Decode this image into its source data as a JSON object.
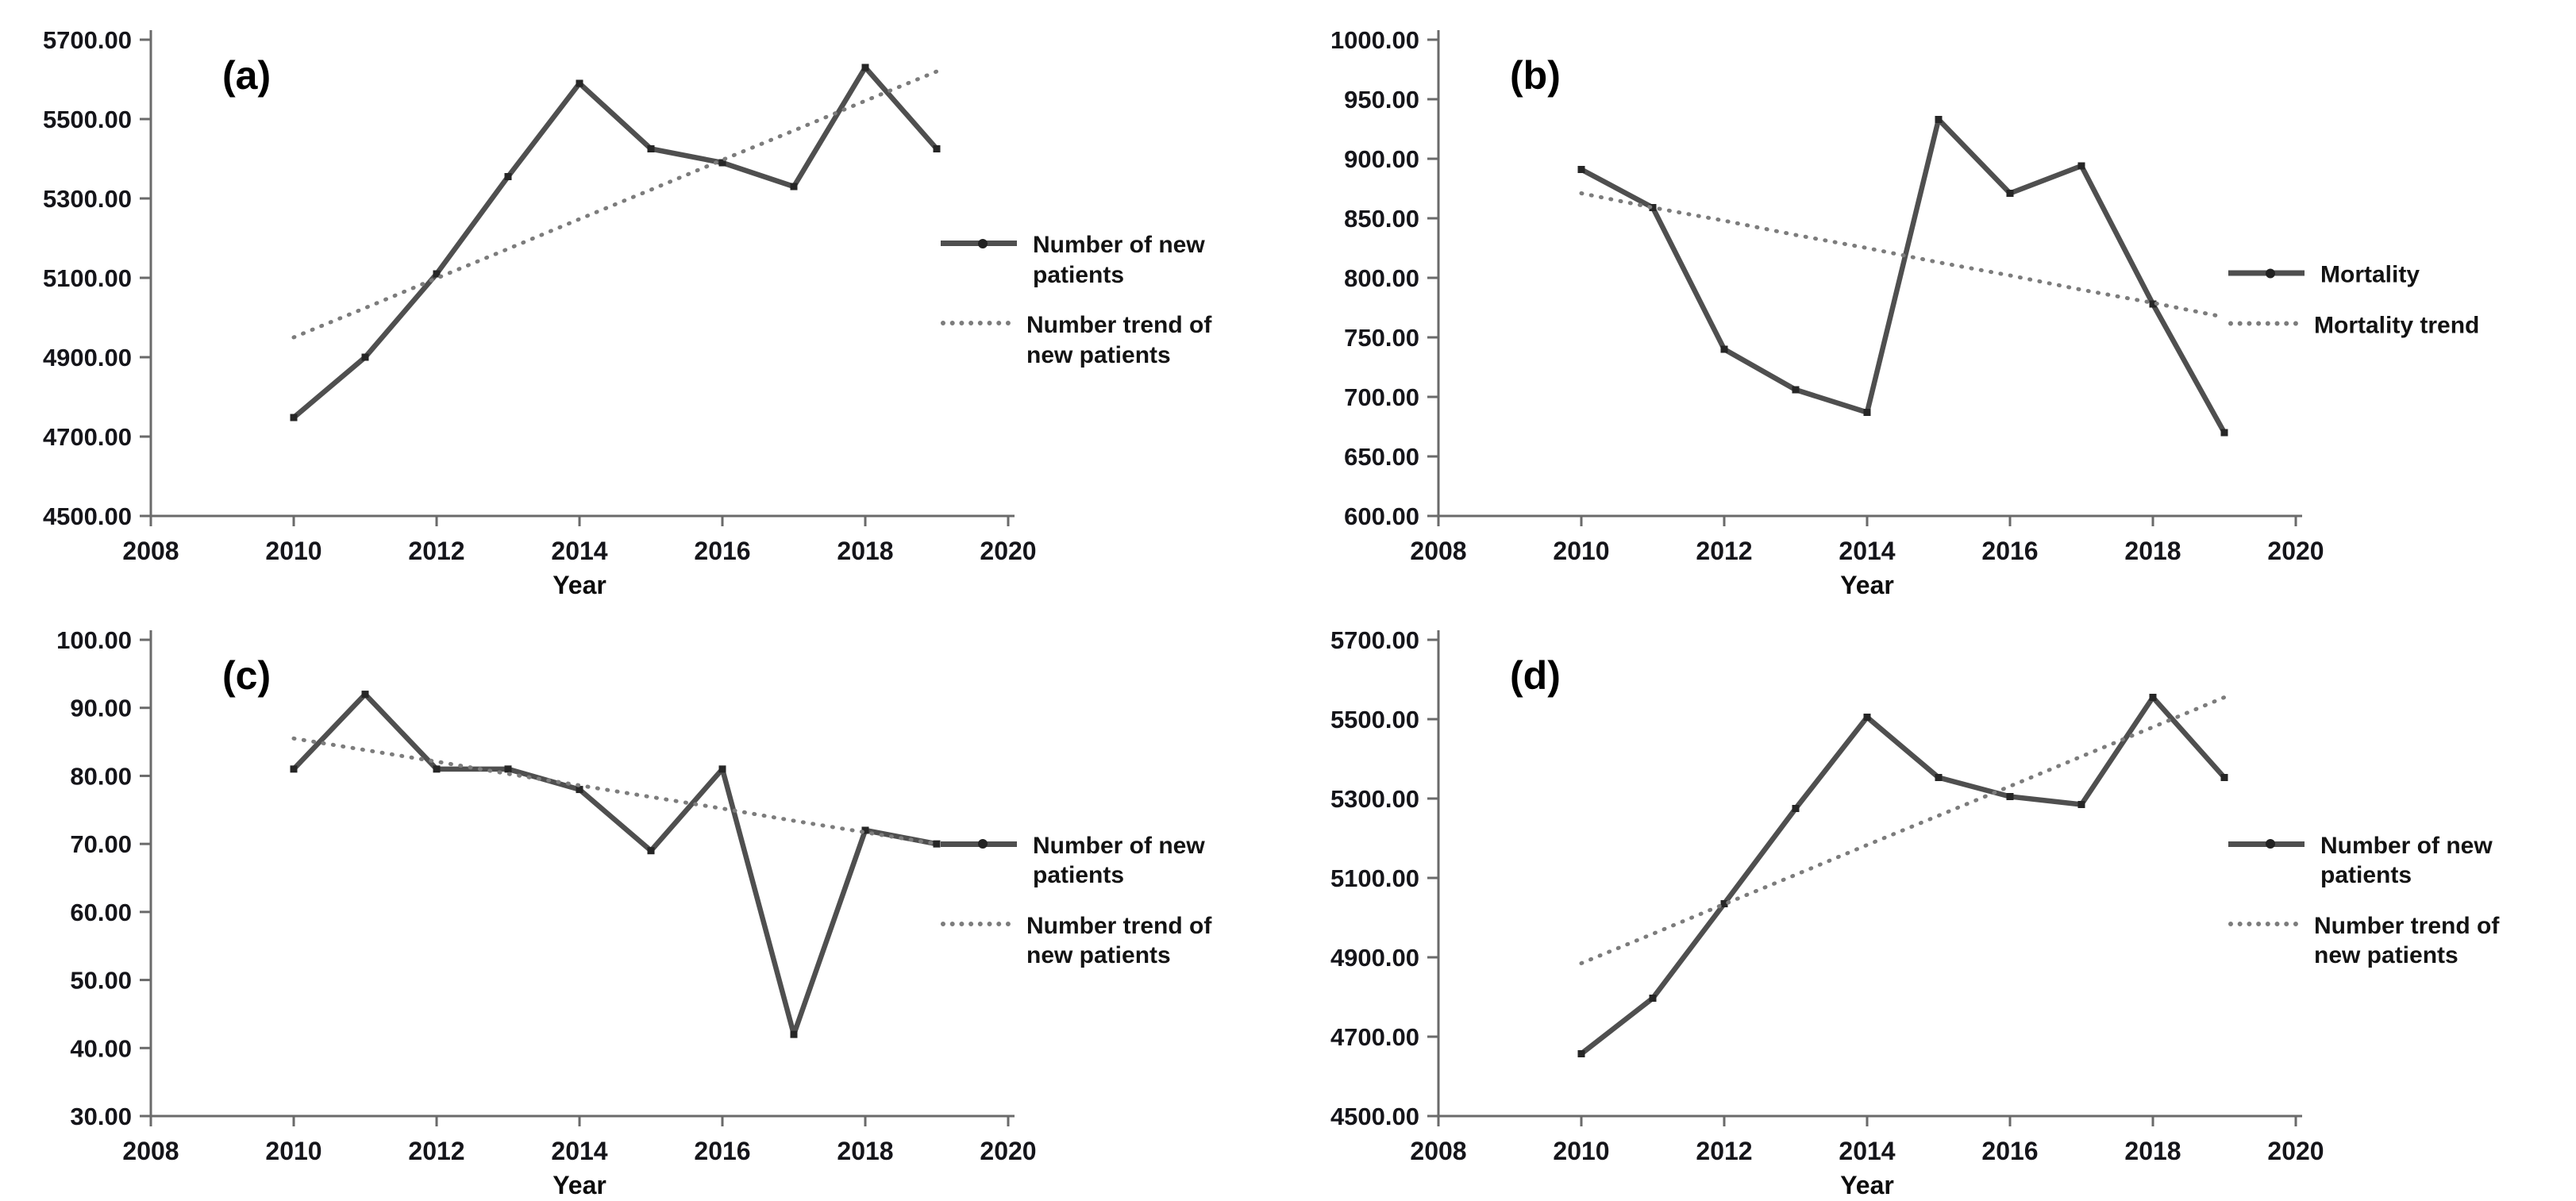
{
  "figure": {
    "background": "#ffffff",
    "xlabel": "Year",
    "panel_labels": [
      "(a)",
      "(b)",
      "(c)",
      "(d)"
    ]
  },
  "colors": {
    "series_line": "#4f4f4f",
    "trend_line": "#7c7c7c",
    "marker": "#262626",
    "axis": "#6a6a6a",
    "tick_text": "#15151a",
    "label_text": "#0d0d0d"
  },
  "chart_data": [
    {
      "panel_label": "(a)",
      "type": "line",
      "xlabel": "Year",
      "xlim": [
        2008,
        2020
      ],
      "ylim": [
        4500,
        5700
      ],
      "xticks": [
        "2008",
        "2010",
        "2012",
        "2014",
        "2016",
        "2018",
        "2020"
      ],
      "yticks": [
        "4500.00",
        "4700.00",
        "4900.00",
        "5100.00",
        "5300.00",
        "5500.00",
        "5700.00"
      ],
      "x": [
        2010,
        2011,
        2012,
        2013,
        2014,
        2015,
        2016,
        2017,
        2018,
        2019
      ],
      "grid": false,
      "legend_position": "right",
      "series": [
        {
          "name": "Number of new patients",
          "style": "solid",
          "values": [
            4748,
            4900,
            5110,
            5355,
            5590,
            5425,
            5390,
            5330,
            5630,
            5425
          ]
        },
        {
          "name": "Number trend of new patients",
          "style": "dotted",
          "values": [
            4950,
            5024,
            5099,
            5173,
            5248,
            5322,
            5397,
            5471,
            5546,
            5620
          ]
        }
      ]
    },
    {
      "panel_label": "(b)",
      "type": "line",
      "xlabel": "Year",
      "xlim": [
        2008,
        2020
      ],
      "ylim": [
        600,
        1000
      ],
      "xticks": [
        "2008",
        "2010",
        "2012",
        "2014",
        "2016",
        "2018",
        "2020"
      ],
      "yticks": [
        "600.00",
        "650.00",
        "700.00",
        "750.00",
        "800.00",
        "850.00",
        "900.00",
        "950.00",
        "1000.00"
      ],
      "x": [
        2010,
        2011,
        2012,
        2013,
        2014,
        2015,
        2016,
        2017,
        2018,
        2019
      ],
      "grid": false,
      "legend_position": "right",
      "series": [
        {
          "name": "Mortality",
          "style": "solid",
          "values": [
            891,
            859,
            740,
            706,
            687,
            933,
            871,
            894,
            778,
            670
          ]
        },
        {
          "name": "Mortality trend",
          "style": "dotted",
          "values": [
            871,
            859,
            848,
            836,
            825,
            813,
            802,
            790,
            779,
            767
          ]
        }
      ]
    },
    {
      "panel_label": "(c)",
      "type": "line",
      "xlabel": "Year",
      "xlim": [
        2008,
        2020
      ],
      "ylim": [
        30,
        100
      ],
      "xticks": [
        "2008",
        "2010",
        "2012",
        "2014",
        "2016",
        "2018",
        "2020"
      ],
      "yticks": [
        "30.00",
        "40.00",
        "50.00",
        "60.00",
        "70.00",
        "80.00",
        "90.00",
        "100.00"
      ],
      "x": [
        2010,
        2011,
        2012,
        2013,
        2014,
        2015,
        2016,
        2017,
        2018,
        2019
      ],
      "grid": false,
      "legend_position": "right",
      "series": [
        {
          "name": "Number of new patients",
          "style": "solid",
          "values": [
            81,
            92,
            81,
            81,
            78,
            69,
            81,
            42,
            72,
            70
          ]
        },
        {
          "name": "Number trend of new patients",
          "style": "dotted",
          "values": [
            85.5,
            83.8,
            82.1,
            80.3,
            78.6,
            76.9,
            75.2,
            73.4,
            71.7,
            70.0
          ]
        }
      ]
    },
    {
      "panel_label": "(d)",
      "type": "line",
      "xlabel": "Year",
      "xlim": [
        2008,
        2020
      ],
      "ylim": [
        4500,
        5700
      ],
      "xticks": [
        "2008",
        "2010",
        "2012",
        "2014",
        "2016",
        "2018",
        "2020"
      ],
      "yticks": [
        "4500.00",
        "4700.00",
        "4900.00",
        "5100.00",
        "5300.00",
        "5500.00",
        "5700.00"
      ],
      "x": [
        2010,
        2011,
        2012,
        2013,
        2014,
        2015,
        2016,
        2017,
        2018,
        2019
      ],
      "grid": false,
      "legend_position": "right",
      "series": [
        {
          "name": "Number of new patients",
          "style": "solid",
          "values": [
            4657,
            4797,
            5035,
            5275,
            5505,
            5353,
            5305,
            5285,
            5555,
            5353
          ]
        },
        {
          "name": "Number trend of new patients",
          "style": "dotted",
          "values": [
            4885,
            4959,
            5034,
            5108,
            5183,
            5257,
            5331,
            5406,
            5480,
            5555
          ]
        }
      ]
    }
  ]
}
